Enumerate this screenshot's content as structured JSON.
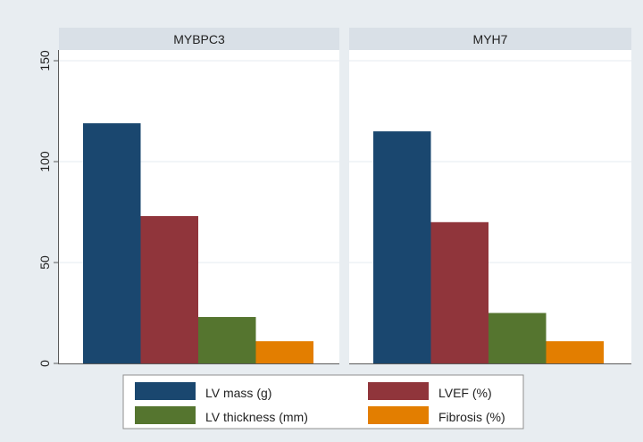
{
  "chart_data": {
    "type": "bar",
    "panels": [
      {
        "title": "MYBPC3",
        "values": [
          119,
          73,
          23,
          11
        ]
      },
      {
        "title": "MYH7",
        "values": [
          115,
          70,
          25,
          11
        ]
      }
    ],
    "series": [
      {
        "name": "LV mass (g)",
        "color": "#1a476f"
      },
      {
        "name": "LVEF (%)",
        "color": "#90353b"
      },
      {
        "name": "LV thickness (mm)",
        "color": "#55752f"
      },
      {
        "name": "Fibrosis (%)",
        "color": "#e37e00"
      }
    ],
    "ylim": [
      0,
      150
    ],
    "yticks": [
      0,
      50,
      100,
      150
    ],
    "legend_position": "bottom",
    "grid": true,
    "title": "",
    "xlabel": "",
    "ylabel": ""
  }
}
